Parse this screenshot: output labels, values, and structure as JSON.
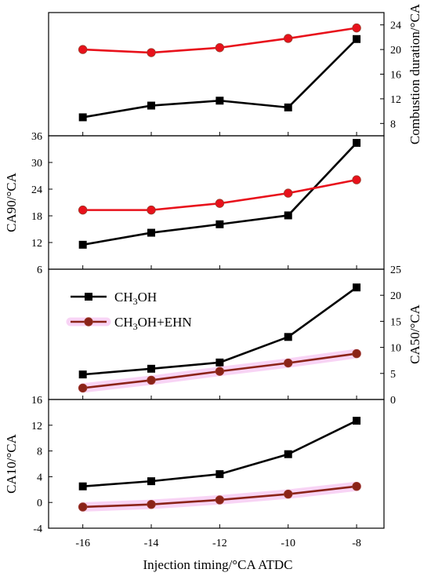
{
  "colors": {
    "ch3oh": "#000000",
    "ehn": "#8b2318",
    "red": "#e8111b",
    "highlight": "#f6c6f2"
  },
  "xaxis": {
    "label": "Injection timing/°CA ATDC",
    "ticks": [
      -16,
      -14,
      -12,
      -10,
      -8
    ],
    "tick_labels": [
      "-16",
      "-14",
      "-12",
      "-10",
      "-8"
    ],
    "lim": [
      -17,
      -7.2
    ]
  },
  "legend": {
    "items": [
      {
        "pre": "CH",
        "sub": "3",
        "post": "OH",
        "marker": "square"
      },
      {
        "pre": "CH",
        "sub": "3",
        "post": "OH+EHN",
        "marker": "circle"
      }
    ]
  },
  "chart_data": [
    {
      "type": "line",
      "panel": "combustion-duration",
      "ylabel": "Combustion duration/°CA",
      "y_axis_side": "right",
      "ylim": [
        6,
        26
      ],
      "yticks": [
        8,
        12,
        16,
        20,
        24
      ],
      "x": [
        -16,
        -14,
        -12,
        -10,
        -8
      ],
      "series": [
        {
          "values": [
            9.0,
            10.9,
            11.7,
            10.6,
            21.7
          ],
          "color": "black",
          "marker": "square"
        },
        {
          "values": [
            20.0,
            19.5,
            20.3,
            21.8,
            23.5
          ],
          "color": "red",
          "marker": "circle"
        }
      ]
    },
    {
      "type": "line",
      "panel": "CA90",
      "ylabel": "CA90/°CA",
      "y_axis_side": "left",
      "ylim": [
        6,
        36
      ],
      "yticks": [
        6,
        12,
        18,
        24,
        30,
        36
      ],
      "x": [
        -16,
        -14,
        -12,
        -10,
        -8
      ],
      "series": [
        {
          "values": [
            11.5,
            14.2,
            16.1,
            18.1,
            34.4
          ],
          "color": "black",
          "marker": "square"
        },
        {
          "values": [
            19.3,
            19.3,
            20.8,
            23.1,
            26.1
          ],
          "color": "red",
          "marker": "circle"
        }
      ]
    },
    {
      "type": "line",
      "panel": "CA50",
      "ylabel": "CA50/°CA",
      "y_axis_side": "right",
      "ylim": [
        0,
        25
      ],
      "yticks": [
        0,
        5,
        10,
        15,
        20,
        25
      ],
      "x": [
        -16,
        -14,
        -12,
        -10,
        -8
      ],
      "series": [
        {
          "name": "CH3OH",
          "values": [
            4.8,
            5.9,
            7.1,
            12.0,
            21.5
          ],
          "color": "black",
          "marker": "square"
        },
        {
          "name": "CH3OH+EHN",
          "values": [
            2.2,
            3.7,
            5.4,
            7.0,
            8.8
          ],
          "color": "brown",
          "marker": "circle",
          "highlighted": true
        }
      ]
    },
    {
      "type": "line",
      "panel": "CA10",
      "ylabel": "CA10/°CA",
      "y_axis_side": "left",
      "ylim": [
        -4,
        16
      ],
      "yticks": [
        -4,
        0,
        4,
        8,
        12,
        16
      ],
      "x": [
        -16,
        -14,
        -12,
        -10,
        -8
      ],
      "series": [
        {
          "values": [
            2.5,
            3.3,
            4.4,
            7.5,
            12.7
          ],
          "color": "black",
          "marker": "square"
        },
        {
          "values": [
            -0.7,
            -0.3,
            0.4,
            1.3,
            2.5
          ],
          "color": "brown",
          "marker": "circle",
          "highlighted": true
        }
      ]
    }
  ]
}
